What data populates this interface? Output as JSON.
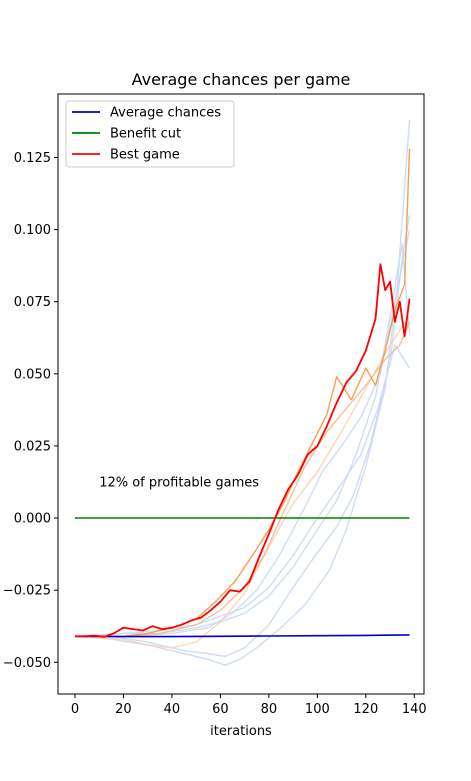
{
  "chart_data": {
    "type": "line",
    "title": "Average chances per game",
    "xlabel": "iterations",
    "ylabel": "",
    "xlim": [
      -7,
      144
    ],
    "ylim": [
      -0.061,
      0.147
    ],
    "xticks": [
      0,
      20,
      40,
      60,
      80,
      100,
      120,
      140
    ],
    "xtick_labels": [
      "0",
      "20",
      "40",
      "60",
      "80",
      "100",
      "120",
      "140"
    ],
    "yticks": [
      -0.05,
      -0.025,
      0.0,
      0.025,
      0.05,
      0.075,
      0.1,
      0.125
    ],
    "ytick_labels": [
      "−0.050",
      "−0.025",
      "0.000",
      "0.025",
      "0.050",
      "0.075",
      "0.100",
      "0.125"
    ],
    "grid": false,
    "legend": {
      "position": "top-left",
      "entries": [
        {
          "label": "Average chances",
          "color": "#0000cc"
        },
        {
          "label": "Benefit cut",
          "color": "#008000"
        },
        {
          "label": "Best game",
          "color": "#ff0000"
        }
      ]
    },
    "annotation": {
      "text": "12% of profitable games",
      "x": 10,
      "y": 0.011
    },
    "series": [
      {
        "name": "Average chances",
        "color": "#0000cc",
        "width": 1.6,
        "opacity": 1,
        "x": [
          0,
          20,
          40,
          60,
          80,
          100,
          120,
          138
        ],
        "y": [
          -0.041,
          -0.0411,
          -0.0411,
          -0.041,
          -0.0409,
          -0.0408,
          -0.0407,
          -0.0405
        ]
      },
      {
        "name": "Benefit cut",
        "color": "#008000",
        "width": 1.6,
        "opacity": 1,
        "x": [
          0,
          138
        ],
        "y": [
          0.0,
          0.0
        ]
      },
      {
        "color": "#c9d8f7",
        "width": 1.4,
        "opacity": 0.9,
        "x": [
          0,
          15,
          30,
          45,
          55,
          62,
          68,
          75,
          85,
          95,
          105,
          112,
          120,
          128,
          133,
          138
        ],
        "y": [
          -0.041,
          -0.042,
          -0.044,
          -0.047,
          -0.049,
          -0.051,
          -0.049,
          -0.045,
          -0.038,
          -0.03,
          -0.018,
          -0.004,
          0.018,
          0.045,
          0.08,
          0.138
        ]
      },
      {
        "color": "#c9d8f7",
        "width": 1.4,
        "opacity": 0.9,
        "x": [
          0,
          15,
          30,
          45,
          55,
          62,
          70,
          80,
          90,
          100,
          108,
          115,
          122,
          130,
          135,
          138
        ],
        "y": [
          -0.041,
          -0.041,
          -0.043,
          -0.046,
          -0.047,
          -0.048,
          -0.045,
          -0.037,
          -0.024,
          -0.012,
          -0.003,
          0.008,
          0.026,
          0.054,
          0.09,
          0.105
        ]
      },
      {
        "color": "#c9d8f7",
        "width": 1.4,
        "opacity": 0.9,
        "x": [
          0,
          20,
          35,
          50,
          60,
          70,
          80,
          90,
          100,
          110,
          118,
          125,
          132,
          138
        ],
        "y": [
          -0.041,
          -0.04,
          -0.039,
          -0.037,
          -0.034,
          -0.031,
          -0.024,
          -0.013,
          0.0,
          0.012,
          0.022,
          0.038,
          0.06,
          0.052
        ]
      },
      {
        "color": "#c9d8f7",
        "width": 1.4,
        "opacity": 0.9,
        "x": [
          0,
          20,
          35,
          50,
          60,
          70,
          80,
          90,
          100,
          108,
          116,
          124,
          130,
          135,
          138
        ],
        "y": [
          -0.041,
          -0.04,
          -0.04,
          -0.038,
          -0.036,
          -0.033,
          -0.027,
          -0.017,
          -0.004,
          0.006,
          0.022,
          0.042,
          0.07,
          0.095,
          0.064
        ]
      },
      {
        "color": "#c9d8f7",
        "width": 1.4,
        "opacity": 0.9,
        "x": [
          0,
          20,
          40,
          55,
          65,
          75,
          85,
          95,
          102,
          110,
          118,
          126,
          132,
          138
        ],
        "y": [
          -0.041,
          -0.041,
          -0.04,
          -0.038,
          -0.033,
          -0.025,
          -0.012,
          0.004,
          0.016,
          0.025,
          0.035,
          0.05,
          0.075,
          0.1
        ]
      },
      {
        "color": "#fcd0b0",
        "width": 1.4,
        "opacity": 0.9,
        "x": [
          0,
          20,
          30,
          40,
          50,
          60,
          70,
          80,
          90,
          100,
          110,
          120,
          130,
          138
        ],
        "y": [
          -0.041,
          -0.042,
          -0.044,
          -0.045,
          -0.043,
          -0.036,
          -0.026,
          -0.01,
          0.005,
          0.016,
          0.03,
          0.045,
          0.06,
          0.07
        ]
      },
      {
        "color": "#f6b98a",
        "width": 1.4,
        "opacity": 0.9,
        "x": [
          0,
          20,
          35,
          50,
          60,
          70,
          78,
          86,
          95,
          104,
          112,
          120,
          128,
          134,
          138
        ],
        "y": [
          -0.041,
          -0.041,
          -0.04,
          -0.037,
          -0.032,
          -0.024,
          -0.013,
          0.002,
          0.018,
          0.03,
          0.038,
          0.046,
          0.055,
          0.06,
          0.068
        ]
      },
      {
        "color": "#f39c4a",
        "width": 1.4,
        "opacity": 0.95,
        "x": [
          0,
          20,
          30,
          40,
          50,
          58,
          66,
          74,
          80,
          86,
          92,
          98,
          104,
          108,
          114,
          120,
          124,
          128,
          132,
          136,
          138
        ],
        "y": [
          -0.041,
          -0.041,
          -0.04,
          -0.038,
          -0.035,
          -0.029,
          -0.022,
          -0.012,
          -0.004,
          0.005,
          0.016,
          0.026,
          0.036,
          0.049,
          0.041,
          0.052,
          0.046,
          0.058,
          0.072,
          0.081,
          0.128
        ]
      },
      {
        "name": "Best game",
        "color": "#ff0000",
        "width": 1.8,
        "opacity": 1,
        "x": [
          0,
          4,
          8,
          12,
          16,
          20,
          24,
          28,
          32,
          36,
          40,
          44,
          48,
          52,
          56,
          60,
          64,
          68,
          72,
          76,
          80,
          84,
          88,
          92,
          96,
          100,
          104,
          108,
          112,
          116,
          120,
          124,
          126,
          128,
          130,
          132,
          134,
          136,
          138
        ],
        "y": [
          -0.041,
          -0.041,
          -0.0408,
          -0.0412,
          -0.04,
          -0.038,
          -0.0385,
          -0.039,
          -0.0375,
          -0.0385,
          -0.038,
          -0.037,
          -0.0355,
          -0.0345,
          -0.032,
          -0.029,
          -0.025,
          -0.0255,
          -0.022,
          -0.0135,
          -0.0055,
          0.003,
          0.01,
          0.015,
          0.022,
          0.025,
          0.032,
          0.04,
          0.047,
          0.051,
          0.058,
          0.069,
          0.088,
          0.079,
          0.082,
          0.068,
          0.075,
          0.063,
          0.076
        ]
      }
    ]
  }
}
